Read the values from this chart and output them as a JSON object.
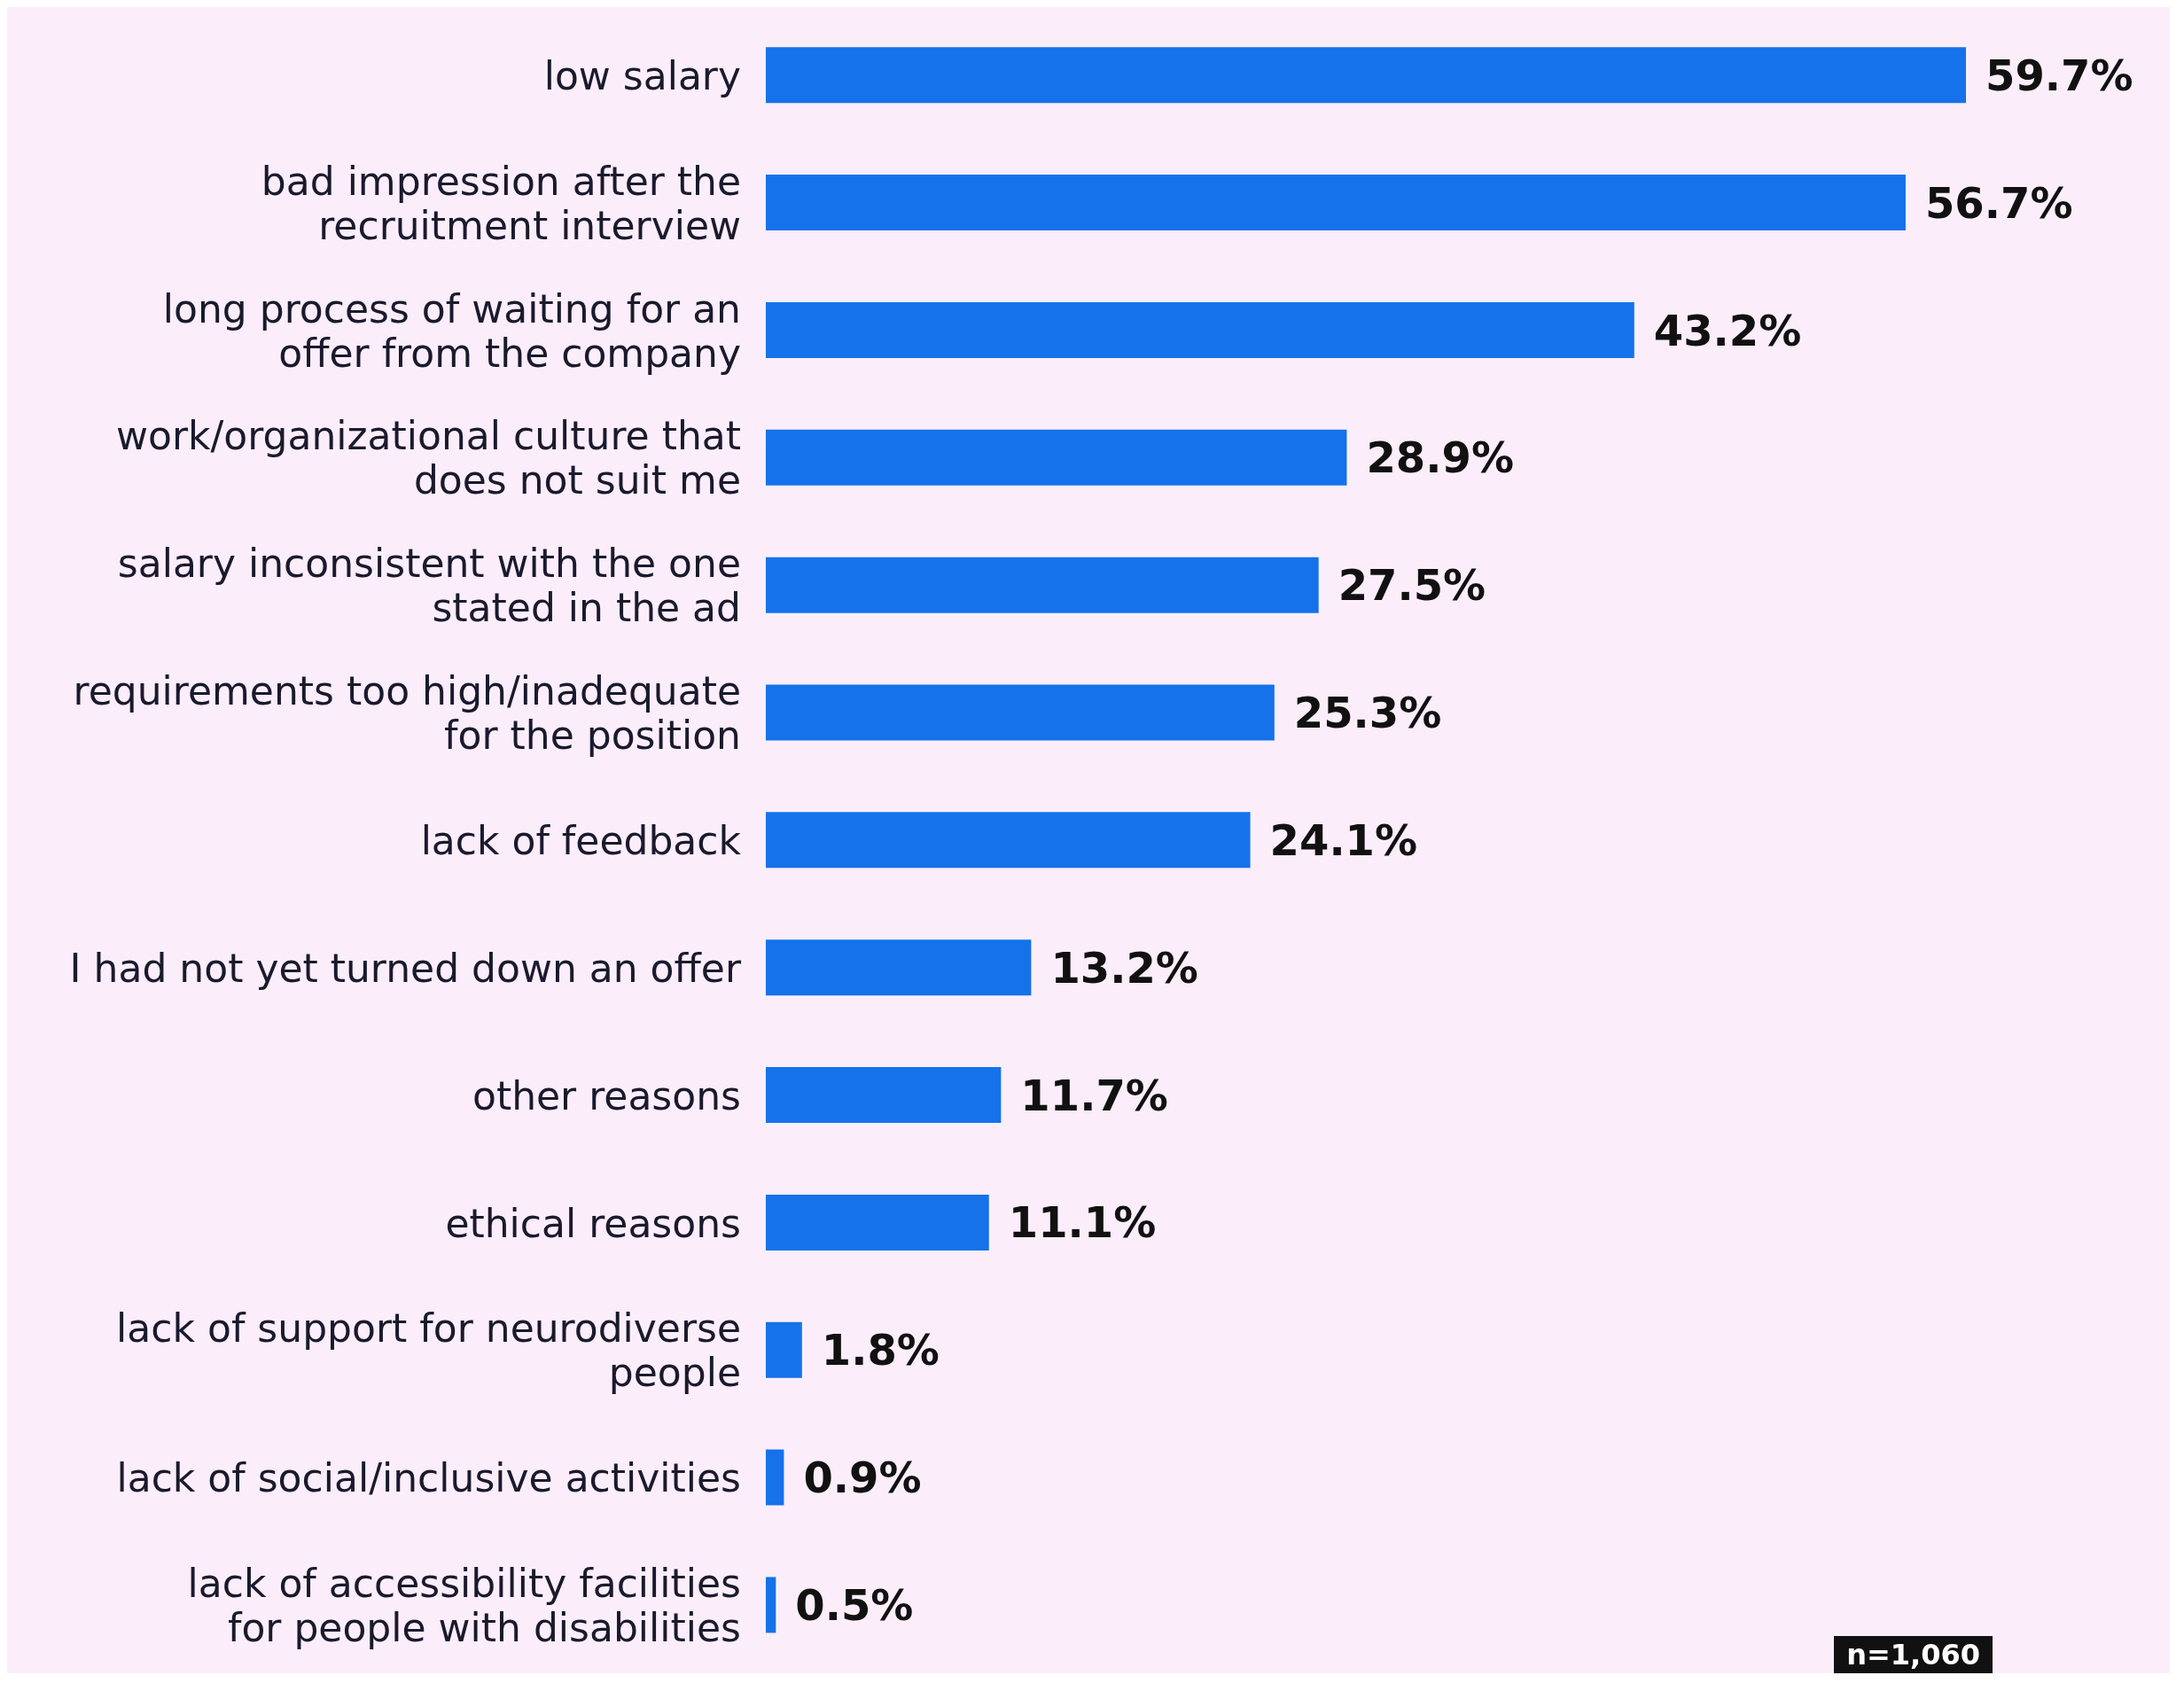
{
  "chart_data": {
    "type": "bar",
    "orientation": "horizontal",
    "value_labels": [
      "59.7%",
      "56.7%",
      "43.2%",
      "28.9%",
      "27.5%",
      "25.3%",
      "24.1%",
      "13.2%",
      "11.7%",
      "11.1%",
      "1.8%",
      "0.9%",
      "0.5%"
    ],
    "color": "#1572ea",
    "categories": [
      "low salary",
      "bad impression after the recruitment interview",
      "long process of waiting for an offer from the company",
      "work/organizational culture that does not suit me",
      "salary inconsistent with the one stated in the ad",
      "requirements too high/inadequate for the position",
      "lack of feedback",
      "I had not yet turned down an offer",
      "other reasons",
      "ethical reasons",
      "lack of support for neurodiverse people",
      "lack of social/inclusive activities",
      "lack of accessibility facilities for people with disabilities"
    ],
    "values": [
      59.7,
      56.7,
      43.2,
      28.9,
      27.5,
      25.3,
      24.1,
      13.2,
      11.7,
      11.1,
      1.8,
      0.9,
      0.5
    ],
    "annotations": [
      "n=1,060"
    ]
  }
}
